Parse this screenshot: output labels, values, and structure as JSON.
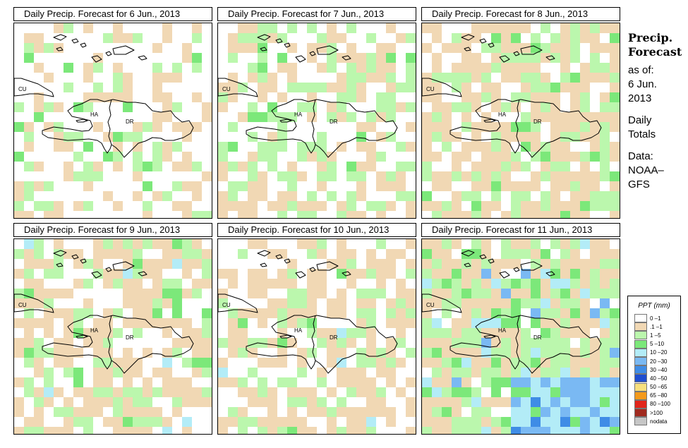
{
  "panels": [
    {
      "title": "Daily Precip. Forecast for  6 Jun., 2013",
      "seed": 11,
      "pcat": [
        0.62,
        0.82,
        0.97,
        1.0,
        1.0,
        1.0
      ]
    },
    {
      "title": "Daily Precip. Forecast for  7 Jun., 2013",
      "seed": 23,
      "pcat": [
        0.42,
        0.68,
        0.96,
        1.0,
        1.0,
        1.0
      ]
    },
    {
      "title": "Daily Precip. Forecast for  8 Jun., 2013",
      "seed": 37,
      "pcat": [
        0.22,
        0.74,
        0.97,
        1.0,
        1.0,
        1.0
      ]
    },
    {
      "title": "Daily Precip. Forecast for  9 Jun., 2013",
      "seed": 41,
      "pcat": [
        0.3,
        0.74,
        0.95,
        0.99,
        1.0,
        1.0
      ]
    },
    {
      "title": "Daily Precip. Forecast for 10 Jun., 2013",
      "seed": 53,
      "pcat": [
        0.38,
        0.8,
        0.97,
        0.995,
        1.0,
        1.0
      ]
    },
    {
      "title": "Daily Precip. Forecast for 11 Jun., 2013",
      "seed": 67,
      "pcat": [
        0.08,
        0.45,
        0.82,
        0.92,
        0.97,
        1.0
      ],
      "heavy": true
    }
  ],
  "places": {
    "cuba": "CU",
    "haiti": "HA",
    "dominican_republic": "DR"
  },
  "sidebar": {
    "title_line1": "Precip.",
    "title_line2": "Forecast",
    "asof_label": "as of:",
    "asof_date1": "6 Jun.",
    "asof_date2": "2013",
    "totals1": "Daily",
    "totals2": "Totals",
    "data_label": "Data:",
    "data_source1": "NOAA–",
    "data_source2": "GFS"
  },
  "legend": {
    "title": "PPT (mm)",
    "items": [
      {
        "label": "0 –1",
        "color": "#ffffff"
      },
      {
        "label": ".1 –1",
        "color": "#f1d8b4"
      },
      {
        "label": "1 –5",
        "color": "#bbf7ad"
      },
      {
        "label": "5 –10",
        "color": "#7ce87a"
      },
      {
        "label": "10 –20",
        "color": "#b3ecf7"
      },
      {
        "label": "20 –30",
        "color": "#7ab9f3"
      },
      {
        "label": "30 –40",
        "color": "#3f8ce6"
      },
      {
        "label": "40 –50",
        "color": "#1f4ed0"
      },
      {
        "label": "50 –65",
        "color": "#f8e07e"
      },
      {
        "label": "65 –80",
        "color": "#f49a1c"
      },
      {
        "label": "80 –100",
        "color": "#e1251b"
      },
      {
        "label": ">100",
        "color": "#a02a1f"
      },
      {
        "label": "nodata",
        "color": "#c6c6c6"
      }
    ]
  },
  "grid_colors": [
    "#ffffff",
    "#f1d8b4",
    "#bbf7ad",
    "#7ce87a",
    "#b3ecf7",
    "#7ab9f3",
    "#3f8ce6"
  ]
}
